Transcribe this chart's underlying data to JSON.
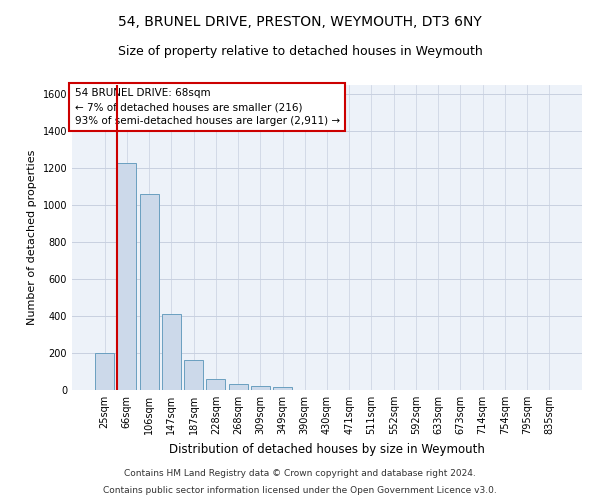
{
  "title": "54, BRUNEL DRIVE, PRESTON, WEYMOUTH, DT3 6NY",
  "subtitle": "Size of property relative to detached houses in Weymouth",
  "xlabel": "Distribution of detached houses by size in Weymouth",
  "ylabel": "Number of detached properties",
  "categories": [
    "25sqm",
    "66sqm",
    "106sqm",
    "147sqm",
    "187sqm",
    "228sqm",
    "268sqm",
    "309sqm",
    "349sqm",
    "390sqm",
    "430sqm",
    "471sqm",
    "511sqm",
    "552sqm",
    "592sqm",
    "633sqm",
    "673sqm",
    "714sqm",
    "754sqm",
    "795sqm",
    "835sqm"
  ],
  "values": [
    200,
    1230,
    1060,
    410,
    165,
    60,
    30,
    20,
    15,
    0,
    0,
    0,
    0,
    0,
    0,
    0,
    0,
    0,
    0,
    0,
    0
  ],
  "bar_color": "#ccd9ea",
  "bar_edge_color": "#6a9fc0",
  "highlight_bar_index": 1,
  "annotation_box_text": "54 BRUNEL DRIVE: 68sqm\n← 7% of detached houses are smaller (216)\n93% of semi-detached houses are larger (2,911) →",
  "ylim": [
    0,
    1650
  ],
  "yticks": [
    0,
    200,
    400,
    600,
    800,
    1000,
    1200,
    1400,
    1600
  ],
  "grid_color": "#c8d0e0",
  "background_color": "#edf2f9",
  "footer_line1": "Contains HM Land Registry data © Crown copyright and database right 2024.",
  "footer_line2": "Contains public sector information licensed under the Open Government Licence v3.0.",
  "title_fontsize": 10,
  "subtitle_fontsize": 9,
  "xlabel_fontsize": 8.5,
  "ylabel_fontsize": 8,
  "tick_fontsize": 7,
  "footer_fontsize": 6.5,
  "annot_fontsize": 7.5
}
